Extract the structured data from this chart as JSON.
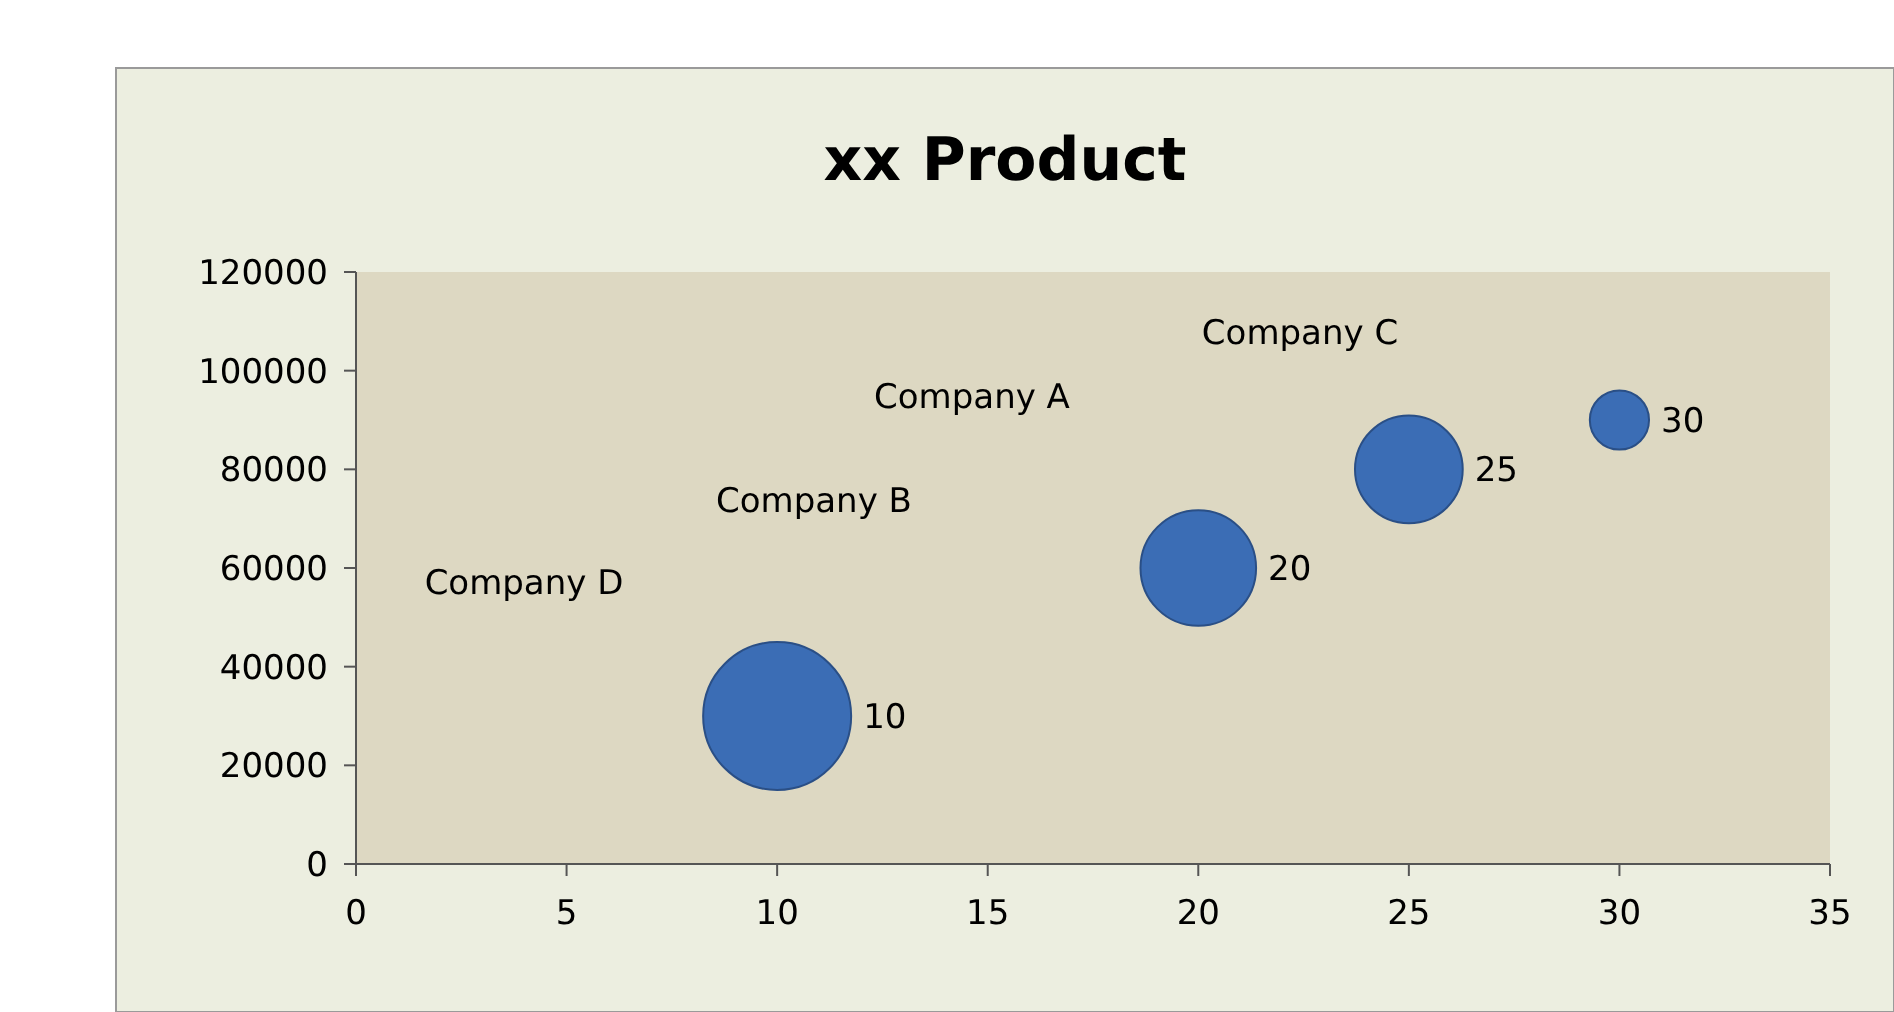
{
  "chart_data": {
    "type": "bubble",
    "title": "xx Product",
    "x": [
      10,
      20,
      25,
      30
    ],
    "values": [
      30000,
      60000,
      80000,
      90000
    ],
    "sizes": [
      1,
      0.61,
      0.53,
      0.16
    ],
    "color": "#3b6db5",
    "xlim": [
      0,
      35
    ],
    "xticks": [
      0,
      5,
      10,
      15,
      20,
      25,
      30,
      35
    ],
    "ylim": [
      0,
      120000
    ],
    "yticks": [
      0,
      20000,
      40000,
      60000,
      80000,
      100000,
      120000
    ],
    "annotations": [
      "Company D",
      "Company B",
      "Company A",
      "Company C",
      {
        "text": "10",
        "x": 10,
        "y": 30000
      },
      {
        "text": "20",
        "x": 20,
        "y": 60000
      },
      {
        "text": "25",
        "x": 25,
        "y": 80000
      },
      {
        "text": "30",
        "x": 30,
        "y": 90000
      }
    ],
    "grid": false
  }
}
